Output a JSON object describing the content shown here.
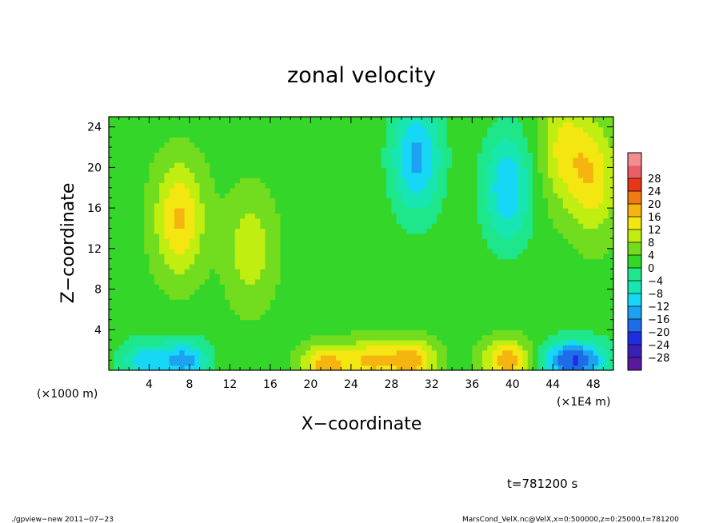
{
  "chart_data": {
    "type": "heatmap",
    "title": "zonal velocity",
    "xlabel": "X−coordinate",
    "ylabel": "Z−coordinate",
    "x_unit_left": "(×1000 m)",
    "x_unit_right": "(×1E4 m)",
    "xlim": [
      0,
      50
    ],
    "ylim": [
      0,
      25
    ],
    "x_ticks": [
      4,
      8,
      12,
      16,
      20,
      24,
      28,
      32,
      36,
      40,
      44,
      48
    ],
    "y_ticks": [
      4,
      8,
      12,
      16,
      20,
      24
    ],
    "color_levels": [
      -28,
      -24,
      -20,
      -16,
      -12,
      -8,
      -4,
      0,
      4,
      8,
      12,
      16,
      20,
      24,
      28
    ],
    "color_level_labels": [
      "−28",
      "−24",
      "−20",
      "−16",
      "−12",
      "−8",
      "−4",
      "0",
      "4",
      "8",
      "12",
      "16",
      "20",
      "24",
      "28"
    ],
    "colormap": [
      "#5a189a",
      "#3a1fb8",
      "#1c2ee0",
      "#1e6ce8",
      "#1ca2f0",
      "#16d8f6",
      "#18e6b2",
      "#1ee68a",
      "#34d62a",
      "#72dc1e",
      "#c0ee10",
      "#f4e610",
      "#f6b410",
      "#f07a14",
      "#e8361a",
      "#ea5f66",
      "#f48d90"
    ],
    "time_label": "t=781200 s",
    "footer_left": "./gpview−new   2011−07−23",
    "footer_right": "MarsCond_VelX.nc@VelX,x=0:500000,z=0:25000,t=781200",
    "features": [
      {
        "x": 30.5,
        "z": 21,
        "value": -16
      },
      {
        "x": 39.5,
        "z": 18,
        "value": -14
      },
      {
        "x": 7,
        "z": 15,
        "value": 14
      },
      {
        "x": 48,
        "z": 19,
        "value": 12
      },
      {
        "x": 45,
        "z": 22,
        "value": 10
      },
      {
        "x": 14,
        "z": 12,
        "value": 8
      },
      {
        "x": 3.5,
        "z": 1,
        "value": -12
      },
      {
        "x": 7.5,
        "z": 1,
        "value": -16
      },
      {
        "x": 21.5,
        "z": 0.5,
        "value": 16
      },
      {
        "x": 26,
        "z": 1,
        "value": 14
      },
      {
        "x": 30,
        "z": 1,
        "value": 16
      },
      {
        "x": 39.5,
        "z": 1,
        "value": 16
      },
      {
        "x": 45,
        "z": 1,
        "value": -16
      },
      {
        "x": 47.5,
        "z": 1,
        "value": -14
      }
    ]
  }
}
